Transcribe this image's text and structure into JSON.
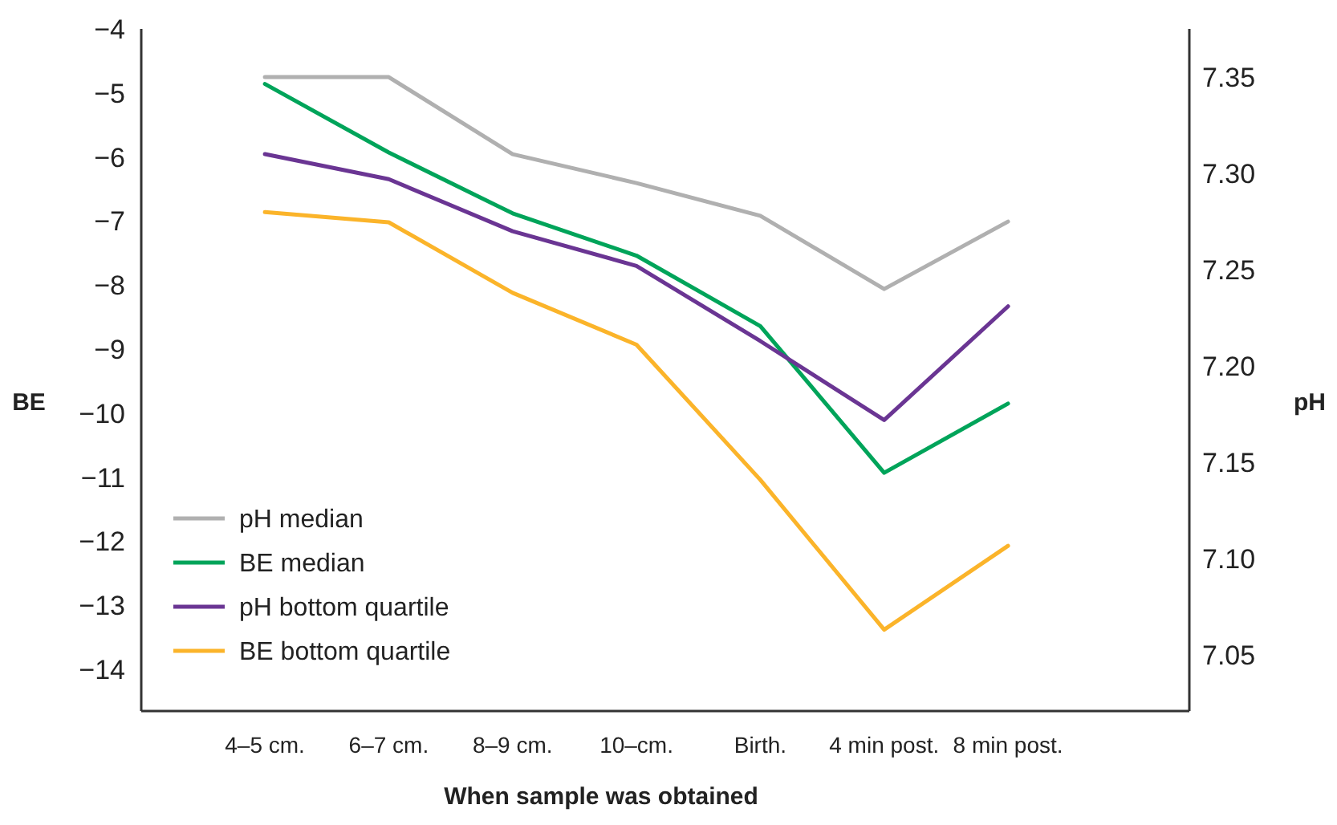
{
  "chart_data": {
    "type": "line",
    "xlabel": "When sample was obtained",
    "ylabel": "BE",
    "y2label": "pH",
    "categories": [
      "4–5 cm.",
      "6–7 cm.",
      "8–9 cm.",
      "10–cm.",
      "Birth.",
      "4 min post.",
      "8 min post."
    ],
    "series": [
      {
        "name": "pH median",
        "color": "#b0b0b0",
        "axis": "y2",
        "values": [
          7.35,
          7.35,
          7.31,
          7.295,
          7.278,
          7.24,
          7.275
        ]
      },
      {
        "name": "BE median",
        "color": "#00a45a",
        "values": [
          -4.86,
          -5.93,
          -6.88,
          -7.54,
          -8.64,
          -10.93,
          -9.85
        ]
      },
      {
        "name": "pH bottom quartile",
        "color": "#6a3593",
        "axis": "y2",
        "values": [
          7.31,
          7.297,
          7.27,
          7.252,
          7.213,
          7.172,
          7.231
        ]
      },
      {
        "name": "BE bottom quartile",
        "color": "#fbb42a",
        "values": [
          -6.86,
          -7.02,
          -8.12,
          -8.93,
          -11.04,
          -13.38,
          -12.07
        ]
      }
    ],
    "ylim": [
      -14.65,
      -4
    ],
    "yticks": [
      {
        "value": -4,
        "label": "−4"
      },
      {
        "value": -5,
        "label": "−5"
      },
      {
        "value": -6,
        "label": "−6"
      },
      {
        "value": -7,
        "label": "−7"
      },
      {
        "value": -8,
        "label": "−8"
      },
      {
        "value": -9,
        "label": "−9"
      },
      {
        "value": -10,
        "label": "−10"
      },
      {
        "value": -11,
        "label": "−11"
      },
      {
        "value": -12,
        "label": "−12"
      },
      {
        "value": -13,
        "label": "−13"
      },
      {
        "value": -14,
        "label": "−14"
      }
    ],
    "y2lim": [
      7.021,
      7.375
    ],
    "y2ticks": [
      {
        "value": 7.05,
        "label": "7.05"
      },
      {
        "value": 7.1,
        "label": "7.10"
      },
      {
        "value": 7.15,
        "label": "7.15"
      },
      {
        "value": 7.2,
        "label": "7.20"
      },
      {
        "value": 7.25,
        "label": "7.25"
      },
      {
        "value": 7.3,
        "label": "7.30"
      },
      {
        "value": 7.35,
        "label": "7.35"
      }
    ],
    "grid": false,
    "legend": "bottom left",
    "marker": "none",
    "line_style": "solid"
  }
}
